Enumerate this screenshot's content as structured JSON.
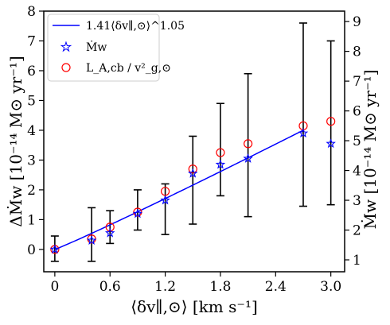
{
  "chart_data": {
    "type": "scatter",
    "xlabel": "⟨δv∥,⊙⟩ [km s⁻¹]",
    "ylabel": "ΔṀw [10⁻¹⁴ M⊙ yr⁻¹]",
    "ylabel_right": "Ṁw [10⁻¹⁴ M⊙ yr⁻¹]",
    "xlim": [
      -0.12,
      3.15
    ],
    "ylim": [
      -0.75,
      8
    ],
    "ylim_right": [
      0.6,
      9.35
    ],
    "x_ticks": [
      "0",
      "0.6",
      "1.2",
      "1.8",
      "2.4",
      "3.0"
    ],
    "x_tick_values": [
      0,
      0.6,
      1.2,
      1.8,
      2.4,
      3.0
    ],
    "y_ticks": [
      "0",
      "1",
      "2",
      "3",
      "4",
      "5",
      "6",
      "7",
      "8"
    ],
    "y_tick_values": [
      0,
      1,
      2,
      3,
      4,
      5,
      6,
      7,
      8
    ],
    "y_right_ticks": [
      "1",
      "2",
      "3",
      "4",
      "5",
      "6",
      "7",
      "8",
      "9"
    ],
    "y_right_tick_values": [
      1,
      2,
      3,
      4,
      5,
      6,
      7,
      8,
      9
    ],
    "grid": false,
    "legend_position": "top-left",
    "series": [
      {
        "name": "1.41⟨δv∥,⊙⟩^1.05",
        "kind": "line",
        "color": "#0000ff",
        "coefficient": 1.41,
        "exponent": 1.05,
        "x_range": [
          0,
          2.7
        ],
        "y_offset": 0.0
      },
      {
        "name": "Ṁw",
        "kind": "star-markers",
        "color": "#0000ff",
        "x": [
          0,
          0.4,
          0.6,
          0.9,
          1.2,
          1.5,
          1.8,
          2.1,
          2.7,
          3.0
        ],
        "y": [
          0.0,
          0.3,
          0.55,
          1.2,
          1.65,
          2.55,
          2.85,
          3.05,
          3.9,
          3.55
        ]
      },
      {
        "name": "L_A,cb / v²_g,⊙",
        "kind": "circle-markers",
        "color": "#ff0000",
        "x": [
          0,
          0.4,
          0.6,
          0.9,
          1.2,
          1.5,
          1.8,
          2.1,
          2.7,
          3.0
        ],
        "y": [
          0.0,
          0.35,
          0.75,
          1.25,
          1.95,
          2.7,
          3.25,
          3.55,
          4.15,
          4.3
        ]
      },
      {
        "name": "error bars",
        "kind": "errorbars",
        "color": "#000000",
        "x": [
          0,
          0.4,
          0.6,
          0.9,
          1.2,
          1.5,
          1.8,
          2.1,
          2.7,
          3.0
        ],
        "low": [
          -0.4,
          -0.4,
          0.2,
          0.65,
          0.5,
          0.85,
          1.8,
          1.1,
          1.45,
          1.5
        ],
        "high": [
          0.45,
          1.4,
          1.3,
          2.0,
          2.2,
          3.8,
          4.9,
          5.9,
          7.6,
          7.0
        ]
      }
    ]
  }
}
